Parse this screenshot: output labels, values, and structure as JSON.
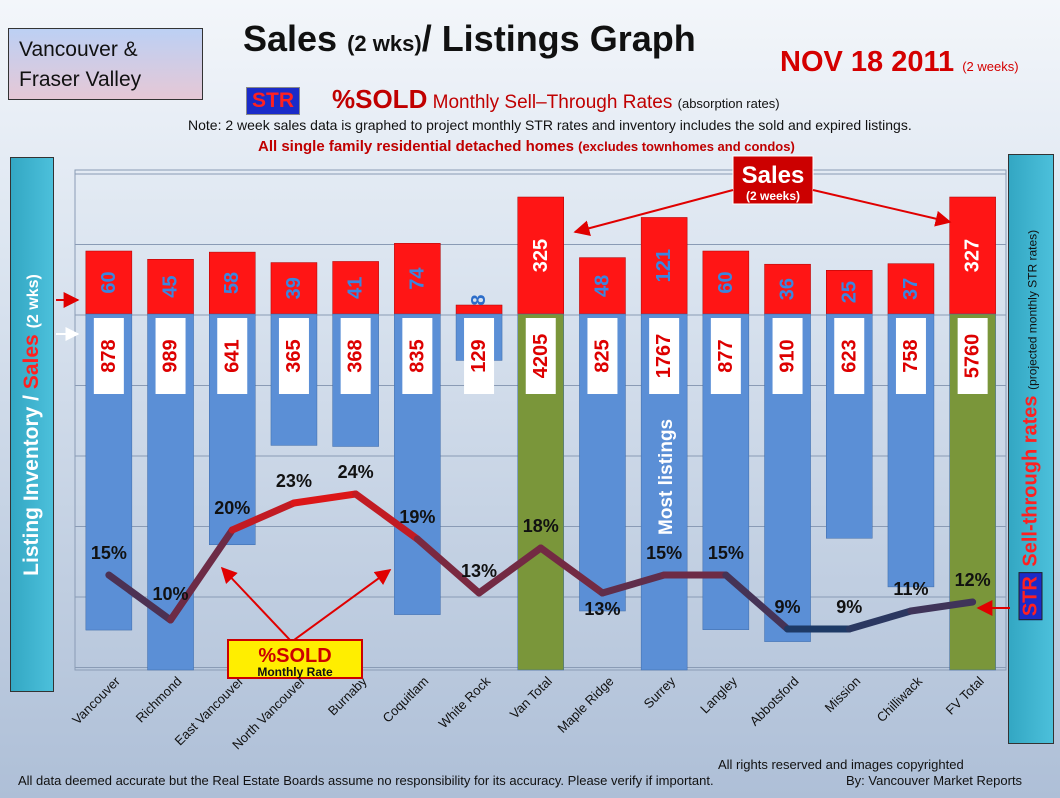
{
  "header": {
    "region_line1": "Vancouver &",
    "region_line2": "Fraser Valley",
    "title_main": "Sales ",
    "title_small": "(2 wks)",
    "title_rest": "/ Listings Graph",
    "date": "NOV 18 2011",
    "date_note": "(2 weeks)",
    "str_badge": "STR",
    "sold_pct": "%SOLD",
    "sold_desc": " Monthly Sell–Through Rates",
    "sold_paren": "(absorption rates)",
    "note": "Note: 2 week sales data is graphed to project monthly STR rates and inventory includes the sold and expired listings.",
    "sfd": "All single family residential detached homes",
    "sfd_paren": "(excludes townhomes and condos)"
  },
  "side_labels": {
    "left_main": "Listing Inventory / ",
    "left_sales": "Sales",
    "left_paren": "(2 wks)",
    "right_str": "STR",
    "right_main": "Sell-through rates",
    "right_paren": "(projected monthly STR rates)"
  },
  "annotations": {
    "sales_callout": "Sales",
    "sales_callout_sub": "(2 weeks)",
    "sold_callout": "%SOLD",
    "sold_callout_sub": "Monthly Rate",
    "most_listings": "Most listings"
  },
  "footer": {
    "disclaimer": "All data deemed accurate but the Real Estate Boards assume no responsibility for its accuracy.  Please verify if important.",
    "rights": "All rights reserved and  images copyrighted",
    "byline": "By: Vancouver  Market Reports"
  },
  "colors": {
    "sales_bar": "#ff1515",
    "listing_bar": "#5b8fd6",
    "total_bar": "#7a963a",
    "line_low": "#1e3a66",
    "line_high": "#e31515"
  },
  "chart_data": {
    "type": "bar",
    "categories": [
      "Vancouver",
      "Richmond",
      "East Vancouver",
      "North Vancouver",
      "Burnaby",
      "Coquitlam",
      "White Rock",
      "Van Total",
      "Maple Ridge",
      "Surrey",
      "Langley",
      "Abbotsford",
      "Mission",
      "Chilliwack",
      "FV Total"
    ],
    "series": [
      {
        "name": "Sales",
        "values": [
          60,
          45,
          58,
          39,
          41,
          74,
          8,
          325,
          48,
          121,
          60,
          36,
          25,
          37,
          327
        ]
      },
      {
        "name": "Listing Inventory",
        "values": [
          878,
          989,
          641,
          365,
          368,
          835,
          129,
          4205,
          825,
          1767,
          877,
          910,
          623,
          758,
          5760
        ]
      },
      {
        "name": "%SOLD",
        "values": [
          15,
          10,
          20,
          23,
          24,
          19,
          13,
          18,
          13,
          15,
          15,
          9,
          9,
          11,
          12
        ]
      }
    ],
    "sold_labels": [
      "15%",
      "10%",
      "20%",
      "23%",
      "24%",
      "19%",
      "13%",
      "18%",
      "13%",
      "15%",
      "15%",
      "9%",
      "9%",
      "11%",
      "12%"
    ],
    "totals": [
      "Van Total",
      "FV Total"
    ],
    "grid": true
  }
}
